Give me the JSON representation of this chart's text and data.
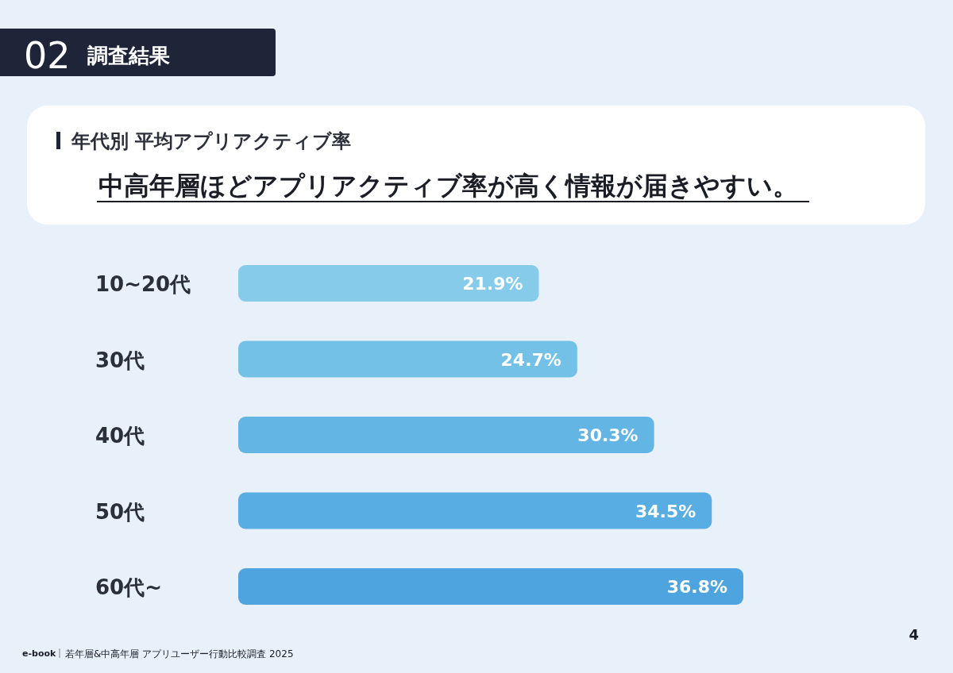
{
  "chart_data": {
    "type": "bar",
    "orientation": "horizontal",
    "subtitle": "年代別 平均アプリアクティブ率",
    "title": "中高年層ほどアプリアクティブ率が高く情報が届きやすい。",
    "categories": [
      "10~20代",
      "30代",
      "40代",
      "50代",
      "60代~"
    ],
    "values": [
      21.9,
      24.7,
      30.3,
      34.5,
      36.8
    ],
    "value_labels": [
      "21.9%",
      "24.7%",
      "30.3%",
      "34.5%",
      "36.8%"
    ],
    "colors": [
      "#86cbea",
      "#74c1e8",
      "#63b5e4",
      "#58ade2",
      "#4ea4de"
    ],
    "annotations": [
      "02",
      "調査結果",
      "e-book",
      "若年層&中高年層 アプリユーザー行動比較調査 2025",
      "4"
    ]
  }
}
